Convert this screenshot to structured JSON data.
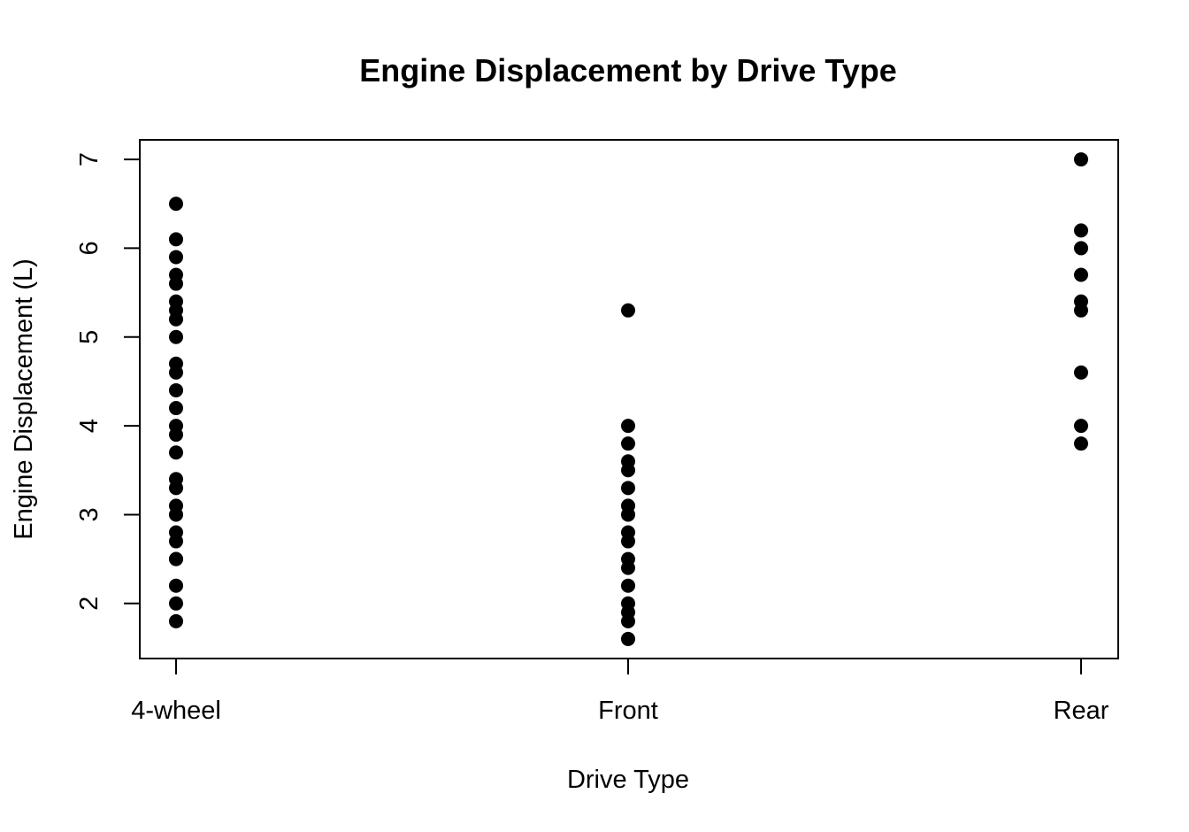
{
  "chart_data": {
    "type": "scatter",
    "title": "Engine Displacement by Drive Type",
    "xlabel": "Drive Type",
    "ylabel": "Engine Displacement (L)",
    "categories": [
      "4-wheel",
      "Front",
      "Rear"
    ],
    "yticks": [
      2,
      3,
      4,
      5,
      6,
      7
    ],
    "ylim": [
      1.38,
      7.22
    ],
    "grid": false,
    "point_color": "#000000",
    "series": [
      {
        "category": "4-wheel",
        "values": [
          1.8,
          2.0,
          2.2,
          2.5,
          2.5,
          2.7,
          2.8,
          3.0,
          3.1,
          3.3,
          3.4,
          3.7,
          3.9,
          4.0,
          4.2,
          4.4,
          4.6,
          4.7,
          5.0,
          5.2,
          5.3,
          5.4,
          5.6,
          5.7,
          5.9,
          6.1,
          6.5
        ]
      },
      {
        "category": "Front",
        "values": [
          1.6,
          1.8,
          1.9,
          2.0,
          2.2,
          2.4,
          2.5,
          2.7,
          2.8,
          3.0,
          3.1,
          3.3,
          3.5,
          3.6,
          3.8,
          4.0,
          5.3
        ]
      },
      {
        "category": "Rear",
        "values": [
          3.8,
          4.0,
          4.6,
          5.3,
          5.4,
          5.7,
          6.0,
          6.2,
          7.0
        ]
      }
    ]
  }
}
